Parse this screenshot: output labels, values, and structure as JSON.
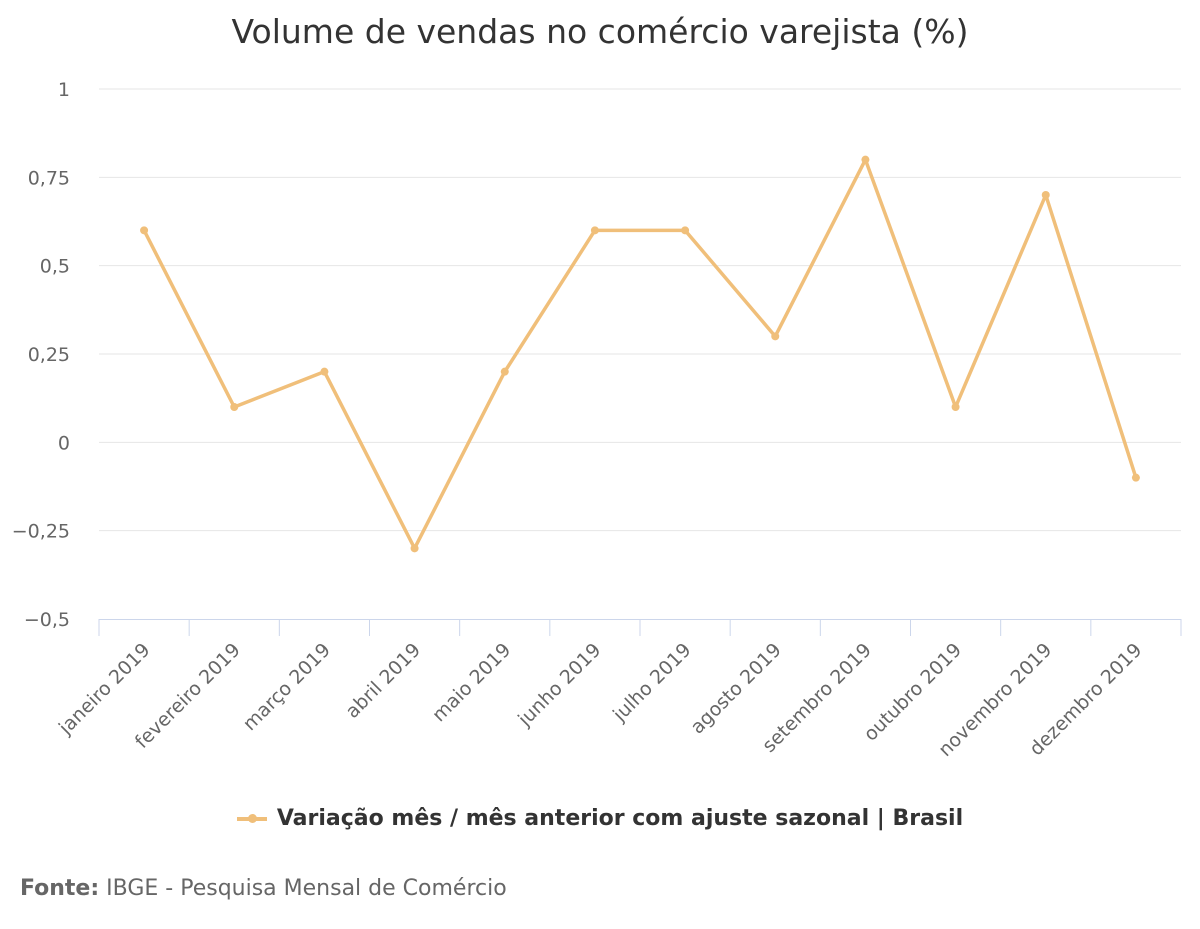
{
  "colors": {
    "series": "#f0bf7a",
    "grid": "#e6e6e6",
    "axis": "#ccd6eb"
  },
  "chart_data": {
    "type": "line",
    "title": "Volume de vendas no comércio varejista (%)",
    "categories": [
      "janeiro 2019",
      "fevereiro 2019",
      "março 2019",
      "abril 2019",
      "maio 2019",
      "junho 2019",
      "julho 2019",
      "agosto 2019",
      "setembro 2019",
      "outubro 2019",
      "novembro 2019",
      "dezembro 2019"
    ],
    "series": [
      {
        "name": "Variação mês / mês anterior com ajuste sazonal | Brasil",
        "values": [
          0.6,
          0.1,
          0.2,
          -0.3,
          0.2,
          0.6,
          0.6,
          0.3,
          0.8,
          0.1,
          0.7,
          -0.1
        ]
      }
    ],
    "yticks": [
      1,
      0.75,
      0.5,
      0.25,
      0,
      -0.25,
      -0.5
    ],
    "ytick_labels": [
      "1",
      "0,75",
      "0,5",
      "0,25",
      "0",
      "−0,25",
      "−0,5"
    ],
    "ylim": [
      -0.5,
      1
    ],
    "grid": true,
    "legend_position": "bottom-center"
  },
  "source": {
    "label": "Fonte:",
    "text": " IBGE - Pesquisa Mensal de Comércio"
  }
}
